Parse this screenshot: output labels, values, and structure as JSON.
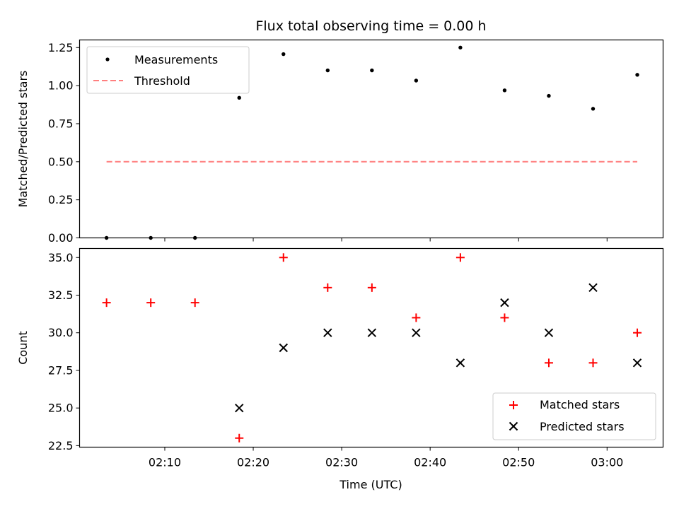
{
  "title": "Flux total observing time = 0.00 h",
  "xlabel": "Time (UTC)",
  "colors": {
    "measurement": "#000000",
    "threshold": "#ff7f7f",
    "matched": "#ff0000",
    "predicted": "#000000"
  },
  "chart_data": [
    {
      "type": "scatter",
      "panel": "top",
      "ylabel": "Matched/Predicted stars",
      "ylim": [
        0,
        1.3
      ],
      "yticks": [
        "0.00",
        "0.25",
        "0.50",
        "0.75",
        "1.00",
        "1.25"
      ],
      "xticks": [
        "02:10",
        "02:20",
        "02:30",
        "02:40",
        "02:50",
        "03:00"
      ],
      "xtick_labels_shown": false,
      "xlim": [
        "02:00:22",
        "03:06:20"
      ],
      "legend": {
        "placement": "upper-left",
        "entries": [
          "Measurements",
          "Threshold"
        ]
      },
      "series": [
        {
          "name": "Measurements",
          "marker": "dot",
          "x": [
            "02:03:25",
            "02:08:25",
            "02:13:25",
            "02:18:25",
            "02:23:25",
            "02:28:25",
            "02:33:25",
            "02:38:25",
            "02:43:25",
            "02:48:25",
            "02:53:25",
            "02:58:25",
            "03:03:25"
          ],
          "y": [
            0.0,
            0.0,
            0.0,
            0.92,
            1.207,
            1.1,
            1.1,
            1.033,
            1.25,
            0.969,
            0.933,
            0.848,
            1.071
          ]
        },
        {
          "name": "Threshold",
          "line": "dashed",
          "x": [
            "02:03:25",
            "03:03:25"
          ],
          "y": [
            0.5,
            0.5
          ]
        }
      ]
    },
    {
      "type": "scatter",
      "panel": "bottom",
      "ylabel": "Count",
      "ylim": [
        22.4,
        35.6
      ],
      "yticks": [
        "22.5",
        "25.0",
        "27.5",
        "30.0",
        "32.5",
        "35.0"
      ],
      "xticks": [
        "02:10",
        "02:20",
        "02:30",
        "02:40",
        "02:50",
        "03:00"
      ],
      "xlim": [
        "02:00:22",
        "03:06:20"
      ],
      "legend": {
        "placement": "lower-right",
        "entries": [
          "Matched stars",
          "Predicted stars"
        ]
      },
      "series": [
        {
          "name": "Matched stars",
          "marker": "plus",
          "x": [
            "02:03:25",
            "02:08:25",
            "02:13:25",
            "02:18:25",
            "02:23:25",
            "02:28:25",
            "02:33:25",
            "02:38:25",
            "02:43:25",
            "02:48:25",
            "02:53:25",
            "02:58:25",
            "03:03:25"
          ],
          "y": [
            32,
            32,
            32,
            23,
            35,
            33,
            33,
            31,
            35,
            31,
            28,
            28,
            30
          ]
        },
        {
          "name": "Predicted stars",
          "marker": "x",
          "x": [
            "02:18:25",
            "02:23:25",
            "02:28:25",
            "02:33:25",
            "02:38:25",
            "02:43:25",
            "02:48:25",
            "02:53:25",
            "02:58:25",
            "03:03:25"
          ],
          "y": [
            25,
            29,
            30,
            30,
            30,
            28,
            32,
            30,
            33,
            28
          ]
        }
      ]
    }
  ]
}
